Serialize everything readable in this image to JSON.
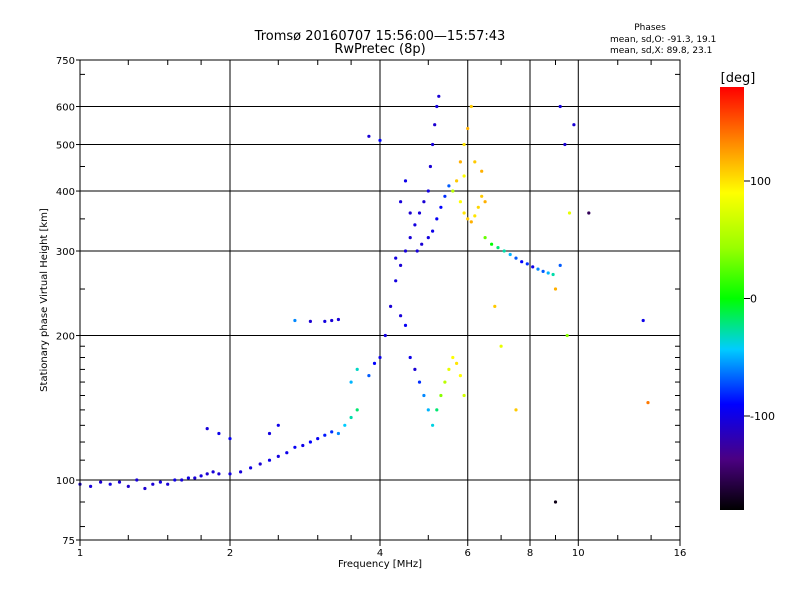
{
  "chart_data": {
    "type": "scatter",
    "title": "Tromsø 20160707 15:56:00—15:57:43",
    "subtitle": "RwPretec (8p)",
    "phases_box": {
      "heading": "Phases",
      "line1": "mean, sd,O: -91.3, 19.1",
      "line2": "mean, sd,X:  89.8, 23.1"
    },
    "xlabel": "Frequency [MHz]",
    "ylabel": "Stationary phase Virtual Height [km]",
    "x_scale": "log2",
    "y_scale": "log",
    "xlim": [
      1,
      16
    ],
    "ylim": [
      75,
      750
    ],
    "x_ticks": [
      1,
      2,
      4,
      6,
      8,
      10,
      16
    ],
    "x_tick_labels": [
      "1",
      "2",
      "4",
      "6",
      "8",
      "10",
      "16"
    ],
    "y_ticks": [
      75,
      100,
      200,
      300,
      400,
      500,
      600,
      750
    ],
    "y_tick_labels": [
      "75",
      "100",
      "200",
      "300",
      "400",
      "500",
      "600",
      "750"
    ],
    "grid": true,
    "colorbar": {
      "label": "[deg]",
      "range": [
        -180,
        180
      ],
      "ticks": [
        100,
        0,
        -100
      ],
      "tick_labels": [
        "100",
        "0",
        "-100"
      ]
    },
    "series": [
      {
        "points": [
          [
            1.0,
            98,
            -110
          ],
          [
            1.05,
            97,
            -108
          ],
          [
            1.1,
            99,
            -112
          ],
          [
            1.15,
            98,
            -105
          ],
          [
            1.2,
            99,
            -110
          ],
          [
            1.25,
            97,
            -115
          ],
          [
            1.3,
            100,
            -108
          ],
          [
            1.35,
            96,
            -112
          ],
          [
            1.4,
            98,
            -110
          ],
          [
            1.45,
            99,
            -105
          ],
          [
            1.5,
            98,
            -110
          ],
          [
            1.55,
            100,
            -102
          ],
          [
            1.6,
            100,
            -108
          ],
          [
            1.65,
            101,
            -104
          ],
          [
            1.7,
            101,
            -110
          ],
          [
            1.75,
            102,
            -106
          ],
          [
            1.8,
            103,
            -112
          ],
          [
            1.85,
            104,
            -108
          ],
          [
            1.9,
            103,
            -110
          ],
          [
            2.0,
            103,
            -105
          ],
          [
            2.1,
            104,
            -108
          ],
          [
            2.2,
            106,
            -104
          ],
          [
            2.3,
            108,
            -110
          ],
          [
            2.4,
            110,
            -100
          ],
          [
            2.5,
            112,
            -105
          ],
          [
            2.6,
            114,
            -100
          ],
          [
            2.7,
            117,
            -95
          ],
          [
            2.8,
            118,
            -100
          ],
          [
            2.9,
            120,
            -90
          ],
          [
            3.0,
            122,
            -95
          ],
          [
            3.1,
            124,
            -85
          ],
          [
            3.2,
            126,
            -80
          ],
          [
            3.3,
            125,
            -60
          ],
          [
            3.4,
            130,
            -45
          ],
          [
            3.5,
            135,
            -30
          ],
          [
            3.6,
            140,
            -20
          ],
          [
            3.5,
            160,
            -50
          ],
          [
            3.6,
            170,
            -35
          ],
          [
            3.8,
            165,
            -70
          ],
          [
            3.9,
            175,
            -90
          ],
          [
            4.0,
            180,
            -100
          ],
          [
            4.1,
            200,
            -105
          ],
          [
            4.2,
            230,
            -110
          ],
          [
            4.3,
            260,
            -105
          ],
          [
            4.4,
            220,
            -108
          ],
          [
            4.5,
            210,
            -95
          ],
          [
            4.6,
            180,
            -100
          ],
          [
            4.7,
            170,
            -110
          ],
          [
            4.8,
            160,
            -80
          ],
          [
            4.9,
            150,
            -60
          ],
          [
            5.0,
            140,
            -50
          ],
          [
            5.1,
            130,
            -40
          ],
          [
            5.2,
            140,
            -20
          ],
          [
            5.3,
            150,
            40
          ],
          [
            5.4,
            160,
            60
          ],
          [
            5.5,
            170,
            80
          ],
          [
            5.6,
            180,
            90
          ],
          [
            5.7,
            175,
            100
          ],
          [
            5.8,
            165,
            90
          ],
          [
            5.9,
            150,
            70
          ],
          [
            3.2,
            215,
            -110
          ],
          [
            3.1,
            214,
            -105
          ],
          [
            3.3,
            216,
            -108
          ],
          [
            2.9,
            214,
            -112
          ],
          [
            2.7,
            215,
            -60
          ],
          [
            2.4,
            125,
            -105
          ],
          [
            2.5,
            130,
            -100
          ],
          [
            1.8,
            128,
            -108
          ],
          [
            1.9,
            125,
            -100
          ],
          [
            2.0,
            122,
            -95
          ],
          [
            4.3,
            290,
            -105
          ],
          [
            4.4,
            280,
            -110
          ],
          [
            4.5,
            300,
            -108
          ],
          [
            4.6,
            320,
            -110
          ],
          [
            4.7,
            340,
            -105
          ],
          [
            4.8,
            360,
            -108
          ],
          [
            4.9,
            380,
            -110
          ],
          [
            5.0,
            400,
            -105
          ],
          [
            5.05,
            450,
            -110
          ],
          [
            5.1,
            500,
            -108
          ],
          [
            5.15,
            550,
            -112
          ],
          [
            5.2,
            600,
            -105
          ],
          [
            5.25,
            630,
            -110
          ],
          [
            4.75,
            300,
            -108
          ],
          [
            4.85,
            310,
            -110
          ],
          [
            5.0,
            320,
            -105
          ],
          [
            5.1,
            330,
            -100
          ],
          [
            5.2,
            350,
            -95
          ],
          [
            5.3,
            370,
            -90
          ],
          [
            5.4,
            390,
            -80
          ],
          [
            5.5,
            410,
            -70
          ],
          [
            5.6,
            400,
            60
          ],
          [
            5.8,
            380,
            90
          ],
          [
            5.9,
            360,
            100
          ],
          [
            6.0,
            350,
            110
          ],
          [
            6.1,
            345,
            120
          ],
          [
            6.2,
            355,
            100
          ],
          [
            6.3,
            370,
            105
          ],
          [
            6.4,
            390,
            110
          ],
          [
            5.7,
            420,
            110
          ],
          [
            5.8,
            460,
            120
          ],
          [
            5.9,
            500,
            100
          ],
          [
            6.0,
            540,
            120
          ],
          [
            6.1,
            600,
            110
          ],
          [
            5.9,
            430,
            90
          ],
          [
            6.5,
            320,
            30
          ],
          [
            6.7,
            310,
            0
          ],
          [
            6.9,
            305,
            -20
          ],
          [
            7.1,
            300,
            -30
          ],
          [
            7.3,
            295,
            -50
          ],
          [
            7.5,
            290,
            -70
          ],
          [
            7.7,
            285,
            -90
          ],
          [
            7.9,
            282,
            -80
          ],
          [
            8.1,
            278,
            -100
          ],
          [
            8.3,
            275,
            -60
          ],
          [
            8.5,
            272,
            -70
          ],
          [
            8.7,
            270,
            -50
          ],
          [
            8.9,
            268,
            -30
          ],
          [
            6.2,
            460,
            110
          ],
          [
            6.4,
            440,
            120
          ],
          [
            9.2,
            600,
            -105
          ],
          [
            9.4,
            500,
            -110
          ],
          [
            9.6,
            360,
            80
          ],
          [
            10.5,
            360,
            -160
          ],
          [
            9.8,
            550,
            -110
          ],
          [
            9.2,
            280,
            -70
          ],
          [
            9.0,
            250,
            120
          ],
          [
            9.5,
            200,
            40
          ],
          [
            13.5,
            215,
            -100
          ],
          [
            13.8,
            145,
            140
          ],
          [
            9.0,
            90,
            -175
          ],
          [
            7.5,
            140,
            110
          ],
          [
            7.0,
            190,
            80
          ],
          [
            6.8,
            230,
            110
          ],
          [
            6.5,
            380,
            120
          ],
          [
            3.8,
            520,
            -110
          ],
          [
            4.0,
            510,
            -90
          ],
          [
            4.5,
            420,
            -100
          ],
          [
            4.4,
            380,
            -108
          ],
          [
            4.6,
            360,
            -112
          ]
        ]
      }
    ]
  }
}
